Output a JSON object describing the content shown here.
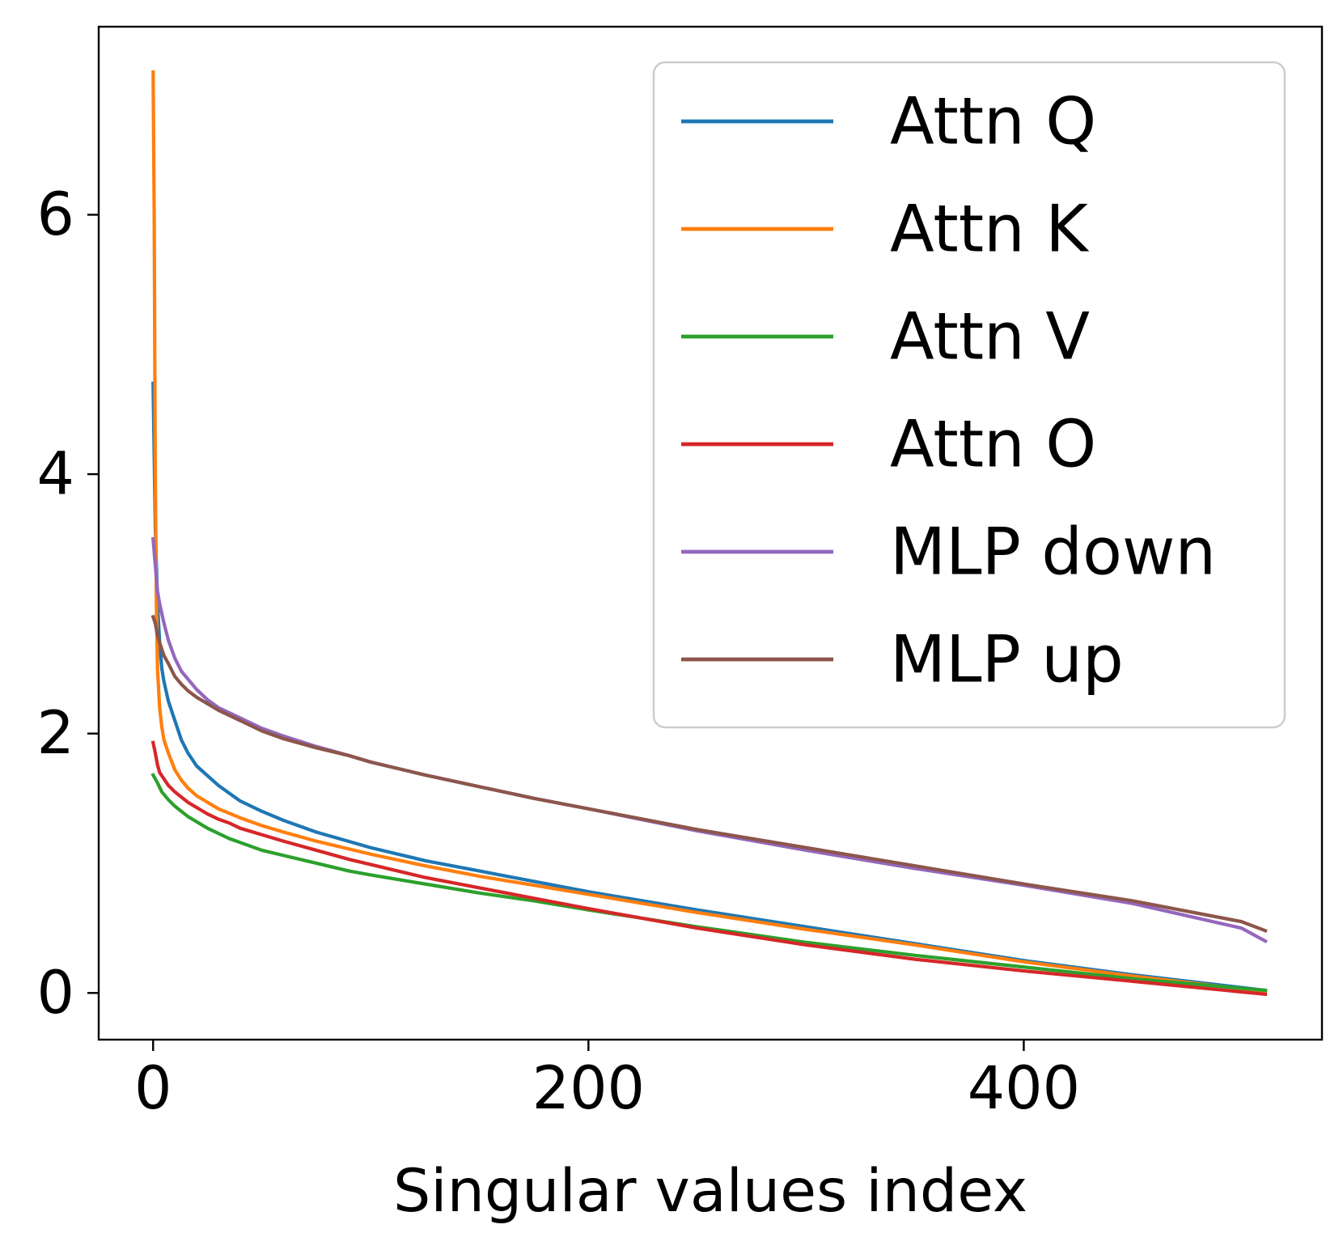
{
  "chart_data": {
    "type": "line",
    "title": "",
    "xlabel": "Singular values index",
    "ylabel": "",
    "xlim": [
      -25,
      537
    ],
    "ylim": [
      -0.36,
      7.45
    ],
    "xticks": [
      0,
      200,
      400
    ],
    "xtick_labels": [
      "0",
      "200",
      "400"
    ],
    "yticks": [
      0,
      2,
      4,
      6
    ],
    "ytick_labels": [
      "0",
      "2",
      "4",
      "6"
    ],
    "grid": false,
    "legend_position": "top-right",
    "series": [
      {
        "name": "Attn Q",
        "color": "#1f77b4",
        "points": [
          [
            0,
            4.7
          ],
          [
            1,
            3.6
          ],
          [
            2,
            3.0
          ],
          [
            3,
            2.7
          ],
          [
            4,
            2.5
          ],
          [
            5,
            2.4
          ],
          [
            7,
            2.25
          ],
          [
            10,
            2.1
          ],
          [
            13,
            1.95
          ],
          [
            16,
            1.85
          ],
          [
            20,
            1.75
          ],
          [
            30,
            1.6
          ],
          [
            40,
            1.48
          ],
          [
            50,
            1.4
          ],
          [
            60,
            1.33
          ],
          [
            75,
            1.24
          ],
          [
            100,
            1.12
          ],
          [
            125,
            1.02
          ],
          [
            150,
            0.94
          ],
          [
            175,
            0.86
          ],
          [
            200,
            0.78
          ],
          [
            250,
            0.64
          ],
          [
            300,
            0.51
          ],
          [
            350,
            0.38
          ],
          [
            400,
            0.25
          ],
          [
            450,
            0.14
          ],
          [
            511,
            0.02
          ]
        ]
      },
      {
        "name": "Attn K",
        "color": "#ff7f0e",
        "points": [
          [
            0,
            7.1
          ],
          [
            0.5,
            6.0
          ],
          [
            1,
            4.0
          ],
          [
            1.5,
            3.0
          ],
          [
            2,
            2.5
          ],
          [
            3,
            2.2
          ],
          [
            4,
            2.05
          ],
          [
            5,
            1.95
          ],
          [
            7,
            1.85
          ],
          [
            10,
            1.72
          ],
          [
            13,
            1.64
          ],
          [
            16,
            1.58
          ],
          [
            20,
            1.52
          ],
          [
            30,
            1.42
          ],
          [
            40,
            1.35
          ],
          [
            50,
            1.29
          ],
          [
            60,
            1.24
          ],
          [
            75,
            1.17
          ],
          [
            100,
            1.07
          ],
          [
            125,
            0.98
          ],
          [
            150,
            0.9
          ],
          [
            175,
            0.83
          ],
          [
            200,
            0.76
          ],
          [
            250,
            0.62
          ],
          [
            300,
            0.49
          ],
          [
            350,
            0.37
          ],
          [
            400,
            0.24
          ],
          [
            450,
            0.13
          ],
          [
            511,
            0.01
          ]
        ]
      },
      {
        "name": "Attn V",
        "color": "#2ca02c",
        "points": [
          [
            0,
            1.68
          ],
          [
            2,
            1.62
          ],
          [
            4,
            1.55
          ],
          [
            7,
            1.49
          ],
          [
            10,
            1.44
          ],
          [
            13,
            1.4
          ],
          [
            16,
            1.36
          ],
          [
            20,
            1.32
          ],
          [
            25,
            1.27
          ],
          [
            30,
            1.23
          ],
          [
            35,
            1.19
          ],
          [
            40,
            1.16
          ],
          [
            50,
            1.1
          ],
          [
            60,
            1.06
          ],
          [
            75,
            1.0
          ],
          [
            90,
            0.94
          ],
          [
            100,
            0.91
          ],
          [
            125,
            0.84
          ],
          [
            150,
            0.77
          ],
          [
            175,
            0.71
          ],
          [
            200,
            0.64
          ],
          [
            250,
            0.51
          ],
          [
            300,
            0.39
          ],
          [
            350,
            0.29
          ],
          [
            400,
            0.2
          ],
          [
            450,
            0.11
          ],
          [
            511,
            0.02
          ]
        ]
      },
      {
        "name": "Attn O",
        "color": "#d62728",
        "points": [
          [
            0,
            1.93
          ],
          [
            1,
            1.85
          ],
          [
            2,
            1.76
          ],
          [
            3,
            1.7
          ],
          [
            5,
            1.65
          ],
          [
            7,
            1.6
          ],
          [
            10,
            1.55
          ],
          [
            13,
            1.51
          ],
          [
            16,
            1.47
          ],
          [
            20,
            1.43
          ],
          [
            25,
            1.38
          ],
          [
            30,
            1.34
          ],
          [
            35,
            1.31
          ],
          [
            40,
            1.27
          ],
          [
            50,
            1.22
          ],
          [
            60,
            1.17
          ],
          [
            75,
            1.1
          ],
          [
            90,
            1.03
          ],
          [
            100,
            0.99
          ],
          [
            125,
            0.89
          ],
          [
            150,
            0.81
          ],
          [
            175,
            0.73
          ],
          [
            200,
            0.65
          ],
          [
            250,
            0.5
          ],
          [
            300,
            0.37
          ],
          [
            350,
            0.26
          ],
          [
            400,
            0.17
          ],
          [
            450,
            0.09
          ],
          [
            511,
            -0.01
          ]
        ]
      },
      {
        "name": "MLP down",
        "color": "#9467bd",
        "points": [
          [
            0,
            3.5
          ],
          [
            1,
            3.3
          ],
          [
            2,
            3.1
          ],
          [
            3,
            3.0
          ],
          [
            5,
            2.85
          ],
          [
            7,
            2.72
          ],
          [
            10,
            2.58
          ],
          [
            13,
            2.48
          ],
          [
            16,
            2.42
          ],
          [
            20,
            2.34
          ],
          [
            25,
            2.26
          ],
          [
            30,
            2.2
          ],
          [
            40,
            2.12
          ],
          [
            50,
            2.04
          ],
          [
            60,
            1.98
          ],
          [
            75,
            1.9
          ],
          [
            90,
            1.83
          ],
          [
            100,
            1.78
          ],
          [
            125,
            1.68
          ],
          [
            150,
            1.59
          ],
          [
            175,
            1.5
          ],
          [
            200,
            1.42
          ],
          [
            250,
            1.25
          ],
          [
            300,
            1.1
          ],
          [
            350,
            0.96
          ],
          [
            400,
            0.83
          ],
          [
            450,
            0.69
          ],
          [
            500,
            0.5
          ],
          [
            511,
            0.4
          ]
        ]
      },
      {
        "name": "MLP up",
        "color": "#8c564b",
        "points": [
          [
            0,
            2.9
          ],
          [
            1,
            2.85
          ],
          [
            2,
            2.76
          ],
          [
            3,
            2.7
          ],
          [
            5,
            2.6
          ],
          [
            7,
            2.54
          ],
          [
            10,
            2.44
          ],
          [
            13,
            2.38
          ],
          [
            16,
            2.33
          ],
          [
            20,
            2.28
          ],
          [
            25,
            2.23
          ],
          [
            30,
            2.18
          ],
          [
            40,
            2.1
          ],
          [
            50,
            2.02
          ],
          [
            60,
            1.96
          ],
          [
            75,
            1.89
          ],
          [
            90,
            1.83
          ],
          [
            100,
            1.78
          ],
          [
            125,
            1.68
          ],
          [
            150,
            1.59
          ],
          [
            175,
            1.5
          ],
          [
            200,
            1.42
          ],
          [
            250,
            1.26
          ],
          [
            300,
            1.12
          ],
          [
            350,
            0.98
          ],
          [
            400,
            0.84
          ],
          [
            450,
            0.71
          ],
          [
            500,
            0.55
          ],
          [
            511,
            0.48
          ]
        ]
      }
    ]
  }
}
